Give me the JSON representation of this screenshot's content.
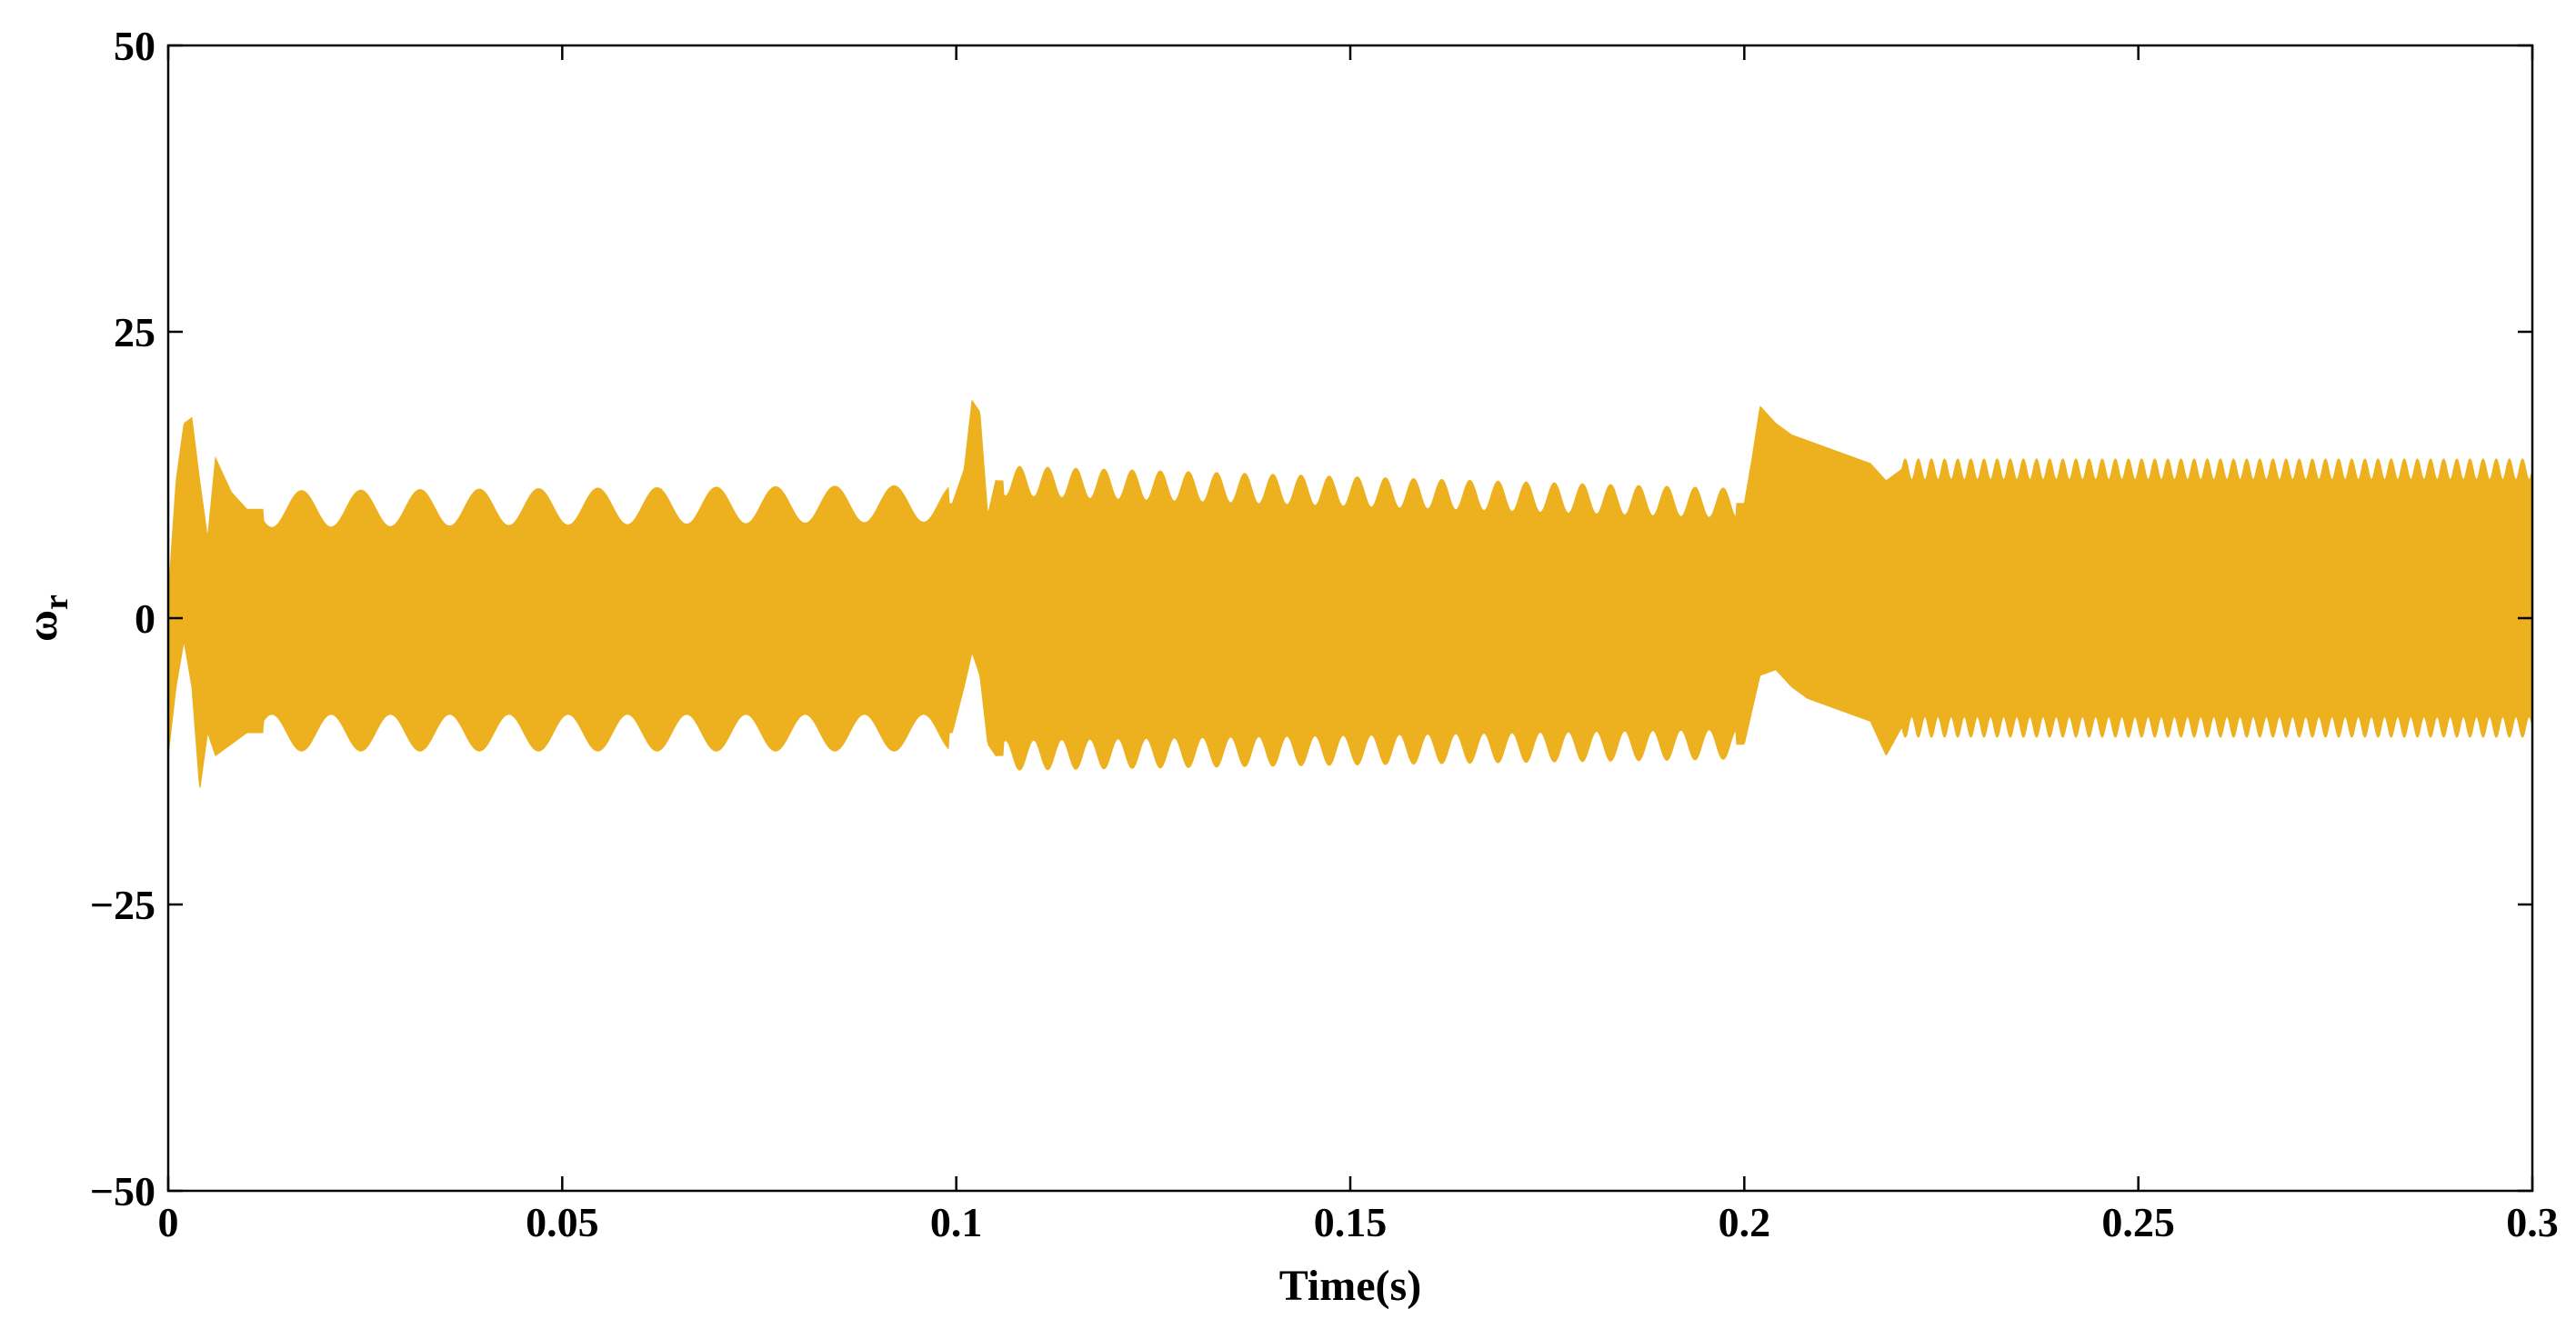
{
  "chart_data": {
    "type": "area",
    "title": "",
    "xlabel": "Time(s)",
    "ylabel_main": "ω",
    "ylabel_sub": "r",
    "xlim": [
      0,
      0.3
    ],
    "ylim": [
      -50,
      50
    ],
    "xticks": [
      0,
      0.05,
      0.1,
      0.15,
      0.2,
      0.25,
      0.3
    ],
    "xtick_labels": [
      "0",
      "0.05",
      "0.1",
      "0.15",
      "0.2",
      "0.25",
      "0.3"
    ],
    "yticks": [
      -50,
      -25,
      0,
      25,
      50
    ],
    "ytick_labels": [
      "−50",
      "−25",
      "0",
      "25",
      "50"
    ],
    "grid": false,
    "series": [
      {
        "color": "#EDB120",
        "envelope": {
          "t": [
            0,
            0.001,
            0.002,
            0.003,
            0.004,
            0.005,
            0.006,
            0.008,
            0.01,
            0.0995,
            0.101,
            0.102,
            0.103,
            0.104,
            0.105,
            0.2,
            0.201,
            0.202,
            0.204,
            0.206,
            0.208,
            0.21,
            0.212,
            0.214,
            0.216,
            0.218,
            0.22,
            0.3
          ],
          "upper": [
            2,
            12,
            17,
            17.5,
            12,
            7,
            14,
            11,
            9.5,
            10,
            13,
            19,
            18,
            9,
            12,
            10,
            14,
            18.5,
            17,
            16,
            15.5,
            15,
            14.5,
            14,
            13.5,
            12,
            13,
            13
          ],
          "lower": [
            -12,
            -6,
            -2,
            -6,
            -15,
            -10,
            -12,
            -11,
            -10,
            -10,
            -6,
            -3,
            -5,
            -11,
            -12,
            -11,
            -8,
            -5,
            -4.5,
            -6,
            -7,
            -7.5,
            -8,
            -8.5,
            -9,
            -12,
            -9.5,
            -9.5
          ]
        }
      }
    ]
  }
}
